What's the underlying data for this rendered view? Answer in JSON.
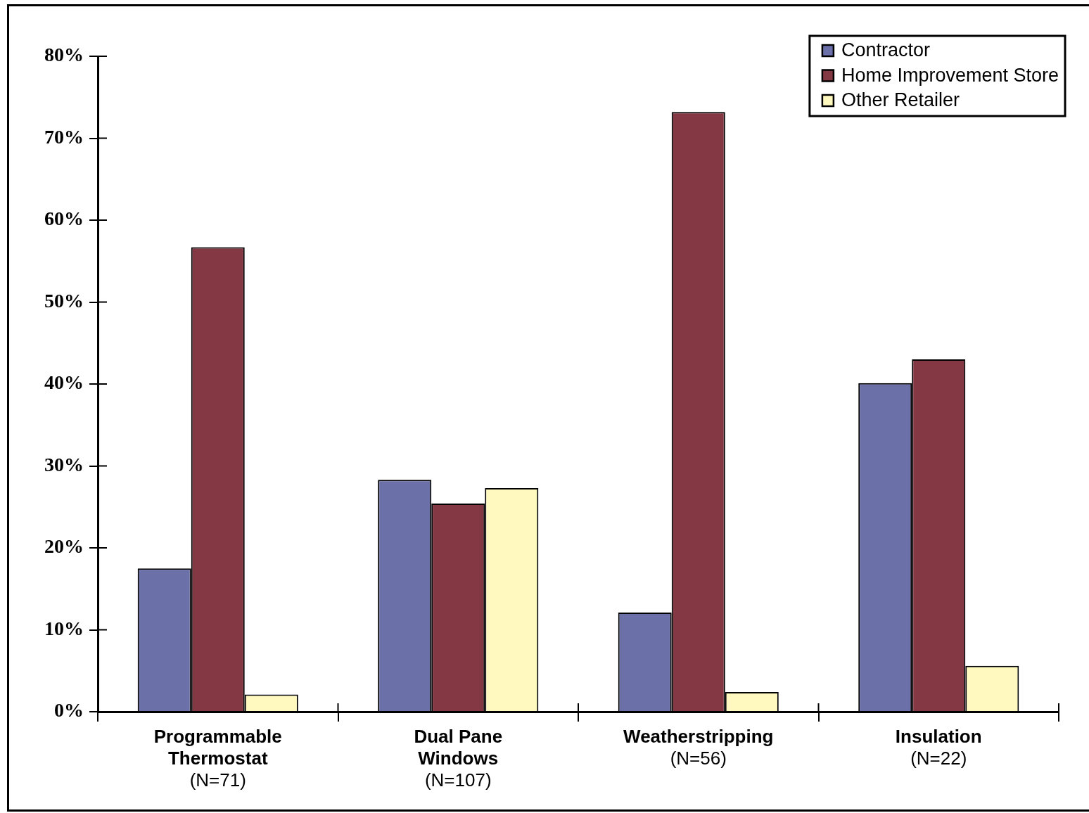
{
  "chart_data": {
    "type": "bar",
    "categories": [
      "Programmable\nThermostat\n(N=71)",
      "Dual Pane\nWindows\n(N=107)",
      "Weatherstripping\n(N=56)",
      "Insulation\n(N=22)"
    ],
    "series": [
      {
        "name": "Contractor",
        "color": "#6b70a8",
        "values": [
          17.5,
          28.3,
          12.1,
          40.1
        ]
      },
      {
        "name": "Home Improvement Store",
        "color": "#833844",
        "values": [
          56.7,
          25.4,
          73.2,
          43.0
        ]
      },
      {
        "name": "Other Retailer",
        "color": "#fff9c0",
        "values": [
          2.1,
          27.3,
          2.4,
          5.6
        ]
      }
    ],
    "ylim": [
      0,
      80
    ],
    "yticks": [
      {
        "value": 0,
        "label": "0%"
      },
      {
        "value": 10,
        "label": "10%"
      },
      {
        "value": 20,
        "label": "20%"
      },
      {
        "value": 30,
        "label": "30%"
      },
      {
        "value": 40,
        "label": "40%"
      },
      {
        "value": 50,
        "label": "50%"
      },
      {
        "value": 60,
        "label": "60%"
      },
      {
        "value": 70,
        "label": "70%"
      },
      {
        "value": 80,
        "label": "80%"
      }
    ],
    "legend": "top right"
  }
}
